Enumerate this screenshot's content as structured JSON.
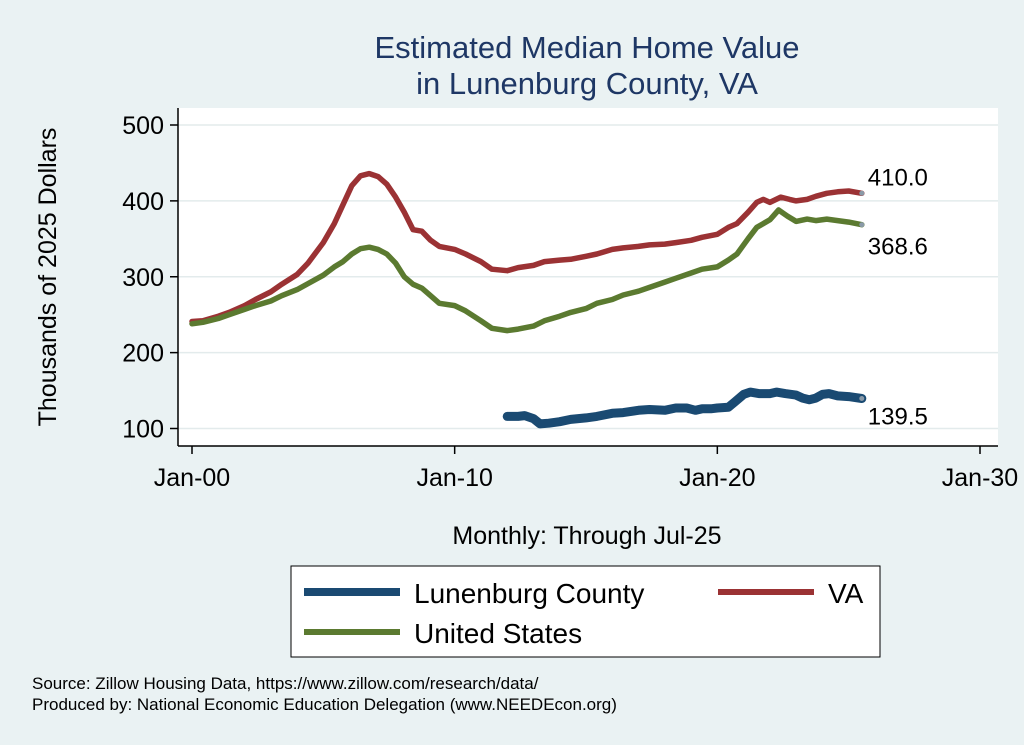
{
  "chart_data": {
    "type": "line",
    "title_lines": [
      "Estimated Median Home Value",
      "in Lunenburg County, VA"
    ],
    "ylabel": "Thousands of 2025 Dollars",
    "xlabel": "Monthly: Through Jul-25",
    "ylim": [
      100,
      500
    ],
    "xlim": [
      "2000-01",
      "2030-01"
    ],
    "y_ticks": [
      100,
      200,
      300,
      400,
      500
    ],
    "x_ticks": [
      {
        "date": "2000-01",
        "label": "Jan-00"
      },
      {
        "date": "2010-01",
        "label": "Jan-10"
      },
      {
        "date": "2020-01",
        "label": "Jan-20"
      },
      {
        "date": "2030-01",
        "label": "Jan-30"
      }
    ],
    "grid": "horizontal",
    "legend_position": "bottom",
    "series": [
      {
        "name": "Lunenburg County",
        "color": "#1a4a72",
        "end_label": "139.5",
        "points": [
          [
            "2012-01",
            116
          ],
          [
            "2012-06",
            116
          ],
          [
            "2012-09",
            117
          ],
          [
            "2013-01",
            113
          ],
          [
            "2013-04",
            106
          ],
          [
            "2013-08",
            107
          ],
          [
            "2014-01",
            109
          ],
          [
            "2014-06",
            112
          ],
          [
            "2015-01",
            114
          ],
          [
            "2015-06",
            116
          ],
          [
            "2016-01",
            120
          ],
          [
            "2016-06",
            121
          ],
          [
            "2017-01",
            124
          ],
          [
            "2017-06",
            125
          ],
          [
            "2018-01",
            124
          ],
          [
            "2018-06",
            127
          ],
          [
            "2018-11",
            127
          ],
          [
            "2019-03",
            124
          ],
          [
            "2019-06",
            126
          ],
          [
            "2019-10",
            126
          ],
          [
            "2020-01",
            127
          ],
          [
            "2020-06",
            128
          ],
          [
            "2020-09",
            135
          ],
          [
            "2021-01",
            145
          ],
          [
            "2021-04",
            148
          ],
          [
            "2021-08",
            146
          ],
          [
            "2022-01",
            146
          ],
          [
            "2022-04",
            148
          ],
          [
            "2022-08",
            146
          ],
          [
            "2023-01",
            144
          ],
          [
            "2023-04",
            140
          ],
          [
            "2023-07",
            138
          ],
          [
            "2023-10",
            140
          ],
          [
            "2024-01",
            145
          ],
          [
            "2024-04",
            146
          ],
          [
            "2024-08",
            143
          ],
          [
            "2025-01",
            142
          ],
          [
            "2025-07",
            139.5
          ]
        ]
      },
      {
        "name": "VA",
        "color": "#9b3234",
        "end_label": "410.0",
        "points": [
          [
            "2000-01",
            241
          ],
          [
            "2000-06",
            242
          ],
          [
            "2001-01",
            248
          ],
          [
            "2001-06",
            253
          ],
          [
            "2002-01",
            262
          ],
          [
            "2002-06",
            270
          ],
          [
            "2003-01",
            280
          ],
          [
            "2003-06",
            290
          ],
          [
            "2004-01",
            303
          ],
          [
            "2004-06",
            318
          ],
          [
            "2005-01",
            345
          ],
          [
            "2005-06",
            370
          ],
          [
            "2005-10",
            395
          ],
          [
            "2006-02",
            420
          ],
          [
            "2006-06",
            433
          ],
          [
            "2006-10",
            436
          ],
          [
            "2007-02",
            432
          ],
          [
            "2007-06",
            422
          ],
          [
            "2007-10",
            405
          ],
          [
            "2008-02",
            385
          ],
          [
            "2008-06",
            362
          ],
          [
            "2008-10",
            360
          ],
          [
            "2009-02",
            348
          ],
          [
            "2009-06",
            340
          ],
          [
            "2010-01",
            336
          ],
          [
            "2010-06",
            330
          ],
          [
            "2011-01",
            320
          ],
          [
            "2011-06",
            310
          ],
          [
            "2012-01",
            308
          ],
          [
            "2012-06",
            312
          ],
          [
            "2013-01",
            315
          ],
          [
            "2013-06",
            320
          ],
          [
            "2014-01",
            322
          ],
          [
            "2014-06",
            323
          ],
          [
            "2015-01",
            327
          ],
          [
            "2015-06",
            330
          ],
          [
            "2016-01",
            336
          ],
          [
            "2016-06",
            338
          ],
          [
            "2017-01",
            340
          ],
          [
            "2017-06",
            342
          ],
          [
            "2018-01",
            343
          ],
          [
            "2018-06",
            345
          ],
          [
            "2019-01",
            348
          ],
          [
            "2019-06",
            352
          ],
          [
            "2020-01",
            356
          ],
          [
            "2020-06",
            365
          ],
          [
            "2020-10",
            370
          ],
          [
            "2021-03",
            385
          ],
          [
            "2021-07",
            398
          ],
          [
            "2021-10",
            402
          ],
          [
            "2022-01",
            398
          ],
          [
            "2022-06",
            405
          ],
          [
            "2022-10",
            402
          ],
          [
            "2023-01",
            400
          ],
          [
            "2023-06",
            402
          ],
          [
            "2023-10",
            406
          ],
          [
            "2024-03",
            410
          ],
          [
            "2024-08",
            412
          ],
          [
            "2025-01",
            413
          ],
          [
            "2025-07",
            410
          ]
        ]
      },
      {
        "name": "United States",
        "color": "#5b7a30",
        "end_label": "368.6",
        "points": [
          [
            "2000-01",
            238
          ],
          [
            "2000-06",
            240
          ],
          [
            "2001-01",
            245
          ],
          [
            "2001-06",
            250
          ],
          [
            "2002-01",
            257
          ],
          [
            "2002-06",
            262
          ],
          [
            "2003-01",
            268
          ],
          [
            "2003-06",
            275
          ],
          [
            "2004-01",
            283
          ],
          [
            "2004-06",
            291
          ],
          [
            "2005-01",
            302
          ],
          [
            "2005-06",
            313
          ],
          [
            "2005-10",
            320
          ],
          [
            "2006-02",
            330
          ],
          [
            "2006-06",
            337
          ],
          [
            "2006-10",
            339
          ],
          [
            "2007-02",
            336
          ],
          [
            "2007-06",
            330
          ],
          [
            "2007-10",
            318
          ],
          [
            "2008-02",
            300
          ],
          [
            "2008-06",
            290
          ],
          [
            "2008-10",
            285
          ],
          [
            "2009-02",
            275
          ],
          [
            "2009-06",
            265
          ],
          [
            "2010-01",
            262
          ],
          [
            "2010-06",
            255
          ],
          [
            "2011-01",
            242
          ],
          [
            "2011-06",
            232
          ],
          [
            "2012-01",
            229
          ],
          [
            "2012-06",
            231
          ],
          [
            "2013-01",
            235
          ],
          [
            "2013-06",
            242
          ],
          [
            "2014-01",
            248
          ],
          [
            "2014-06",
            253
          ],
          [
            "2015-01",
            258
          ],
          [
            "2015-06",
            265
          ],
          [
            "2016-01",
            270
          ],
          [
            "2016-06",
            276
          ],
          [
            "2017-01",
            281
          ],
          [
            "2017-06",
            286
          ],
          [
            "2018-01",
            293
          ],
          [
            "2018-06",
            298
          ],
          [
            "2019-01",
            305
          ],
          [
            "2019-06",
            310
          ],
          [
            "2020-01",
            313
          ],
          [
            "2020-06",
            322
          ],
          [
            "2020-10",
            330
          ],
          [
            "2021-03",
            350
          ],
          [
            "2021-07",
            365
          ],
          [
            "2021-10",
            370
          ],
          [
            "2022-01",
            375
          ],
          [
            "2022-05",
            388
          ],
          [
            "2022-09",
            380
          ],
          [
            "2023-01",
            373
          ],
          [
            "2023-06",
            376
          ],
          [
            "2023-10",
            374
          ],
          [
            "2024-03",
            376
          ],
          [
            "2024-08",
            374
          ],
          [
            "2025-01",
            372
          ],
          [
            "2025-07",
            368.6
          ]
        ]
      }
    ]
  },
  "source_lines": [
    "Source: Zillow Housing Data, https://www.zillow.com/research/data/",
    "Produced by: National Economic Education Delegation (www.NEEDEcon.org)"
  ]
}
